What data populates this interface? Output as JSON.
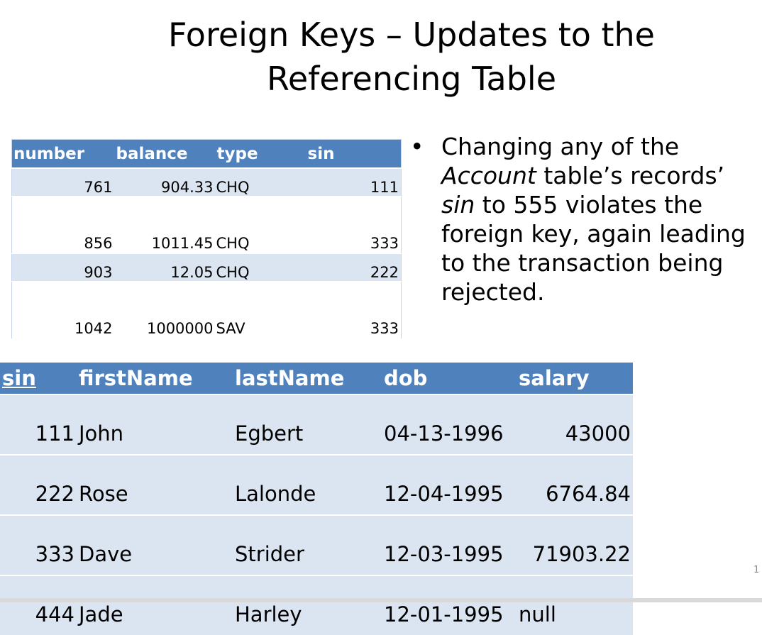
{
  "slide": {
    "title_line1": "Foreign Keys – Updates to the",
    "title_line2": "Referencing Table",
    "page_number": "1"
  },
  "bullet": {
    "symbol": "•",
    "part1": "Changing any of the ",
    "italic1": "Account",
    "part2": " table’s records’ ",
    "italic2": "sin",
    "part3": " to 555 violates the foreign key, again leading to the transaction being rejected."
  },
  "account_table": {
    "headers": [
      "number",
      "balance",
      "type",
      "sin"
    ],
    "rows": [
      [
        "761",
        "904.33",
        "CHQ",
        "111"
      ],
      [
        "856",
        "1011.45",
        "CHQ",
        "333"
      ],
      [
        "903",
        "12.05",
        "CHQ",
        "222"
      ],
      [
        "1042",
        "1000000",
        "SAV",
        "333"
      ]
    ]
  },
  "person_table": {
    "headers": [
      "sin",
      "firstName",
      "lastName",
      "dob",
      "salary"
    ],
    "rows": [
      [
        "111",
        "John",
        "Egbert",
        "04-13-1996",
        "43000"
      ],
      [
        "222",
        "Rose",
        "Lalonde",
        "12-04-1995",
        "6764.84"
      ],
      [
        "333",
        "Dave",
        "Strider",
        "12-03-1995",
        "71903.22"
      ],
      [
        "444",
        "Jade",
        "Harley",
        "12-01-1995",
        "null"
      ]
    ]
  }
}
